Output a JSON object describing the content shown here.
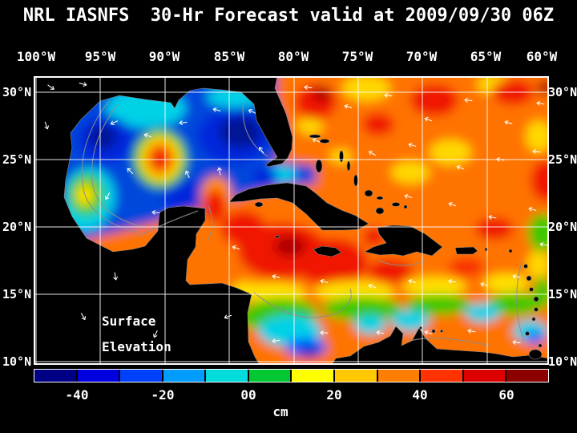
{
  "title": "NRL IASNFS  30-Hr Forecast valid at 2009/09/30 06Z",
  "annotation": {
    "line1": "Surface",
    "line2": "Elevation"
  },
  "axes": {
    "lon_ticks": [
      "100°W",
      "95°W",
      "90°W",
      "85°W",
      "80°W",
      "75°W",
      "70°W",
      "65°W",
      "60°W"
    ],
    "lat_ticks": [
      "30°N",
      "25°N",
      "20°N",
      "15°N",
      "10°N"
    ]
  },
  "colorbar": {
    "unit": "cm",
    "tick_labels": [
      "-40",
      "-20",
      "00",
      "20",
      "40",
      "60"
    ],
    "range_cm": [
      -50,
      70
    ],
    "colors": [
      "#000086",
      "#0000E1",
      "#0041FF",
      "#009CFF",
      "#00DCDC",
      "#00C832",
      "#FFFF00",
      "#FFC800",
      "#FF7D00",
      "#FF3200",
      "#DC0000",
      "#8C0000"
    ]
  },
  "chart_data": {
    "type": "heatmap",
    "title": "NRL IASNFS 30-Hr Forecast valid at 2009/09/30 06Z",
    "model": "NRL IASNFS",
    "forecast_hours": 30,
    "valid_time": "2009/09/30 06Z",
    "variable": "Surface Elevation",
    "unit": "cm",
    "lon_range_deg_w": [
      100,
      60
    ],
    "lat_range_deg_n": [
      10,
      30
    ],
    "grid_spacing_deg": 5,
    "colorbar_range_cm": [
      -50,
      70
    ],
    "colorbar_tick_values": [
      -40,
      -20,
      0,
      20,
      40,
      60
    ],
    "overlays": [
      "white current/wind vector arrows",
      "gray bathymetry contours",
      "white 5-degree graticule",
      "black land mask"
    ],
    "features": [
      {
        "region": "Gulf of Mexico interior",
        "approx_value_cm": -25
      },
      {
        "region": "Warm-core eddy near 90.5W 25N (western Gulf)",
        "approx_value_cm": 45
      },
      {
        "region": "Western Gulf coastal patch near 96W 22.5N",
        "approx_value_cm": 10
      },
      {
        "region": "Eastern Gulf of Mexico (deep blue low)",
        "approx_value_cm": -35
      },
      {
        "region": "Loop Current inflow through Yucatan Channel",
        "approx_value_cm": 45
      },
      {
        "region": "Atlantic / Gulf Stream east of Florida and Bahamas",
        "approx_value_cm": 35
      },
      {
        "region": "Northwest Caribbean south of Cuba",
        "approx_value_cm": 50
      },
      {
        "region": "Band across 14-15N central Caribbean",
        "approx_value_cm": 10
      },
      {
        "region": "Colombia Basin (southern Caribbean) cyan low",
        "approx_value_cm": -10
      },
      {
        "region": "Near Trinidad / 61W 12N blue spot",
        "approx_value_cm": -25
      }
    ]
  }
}
